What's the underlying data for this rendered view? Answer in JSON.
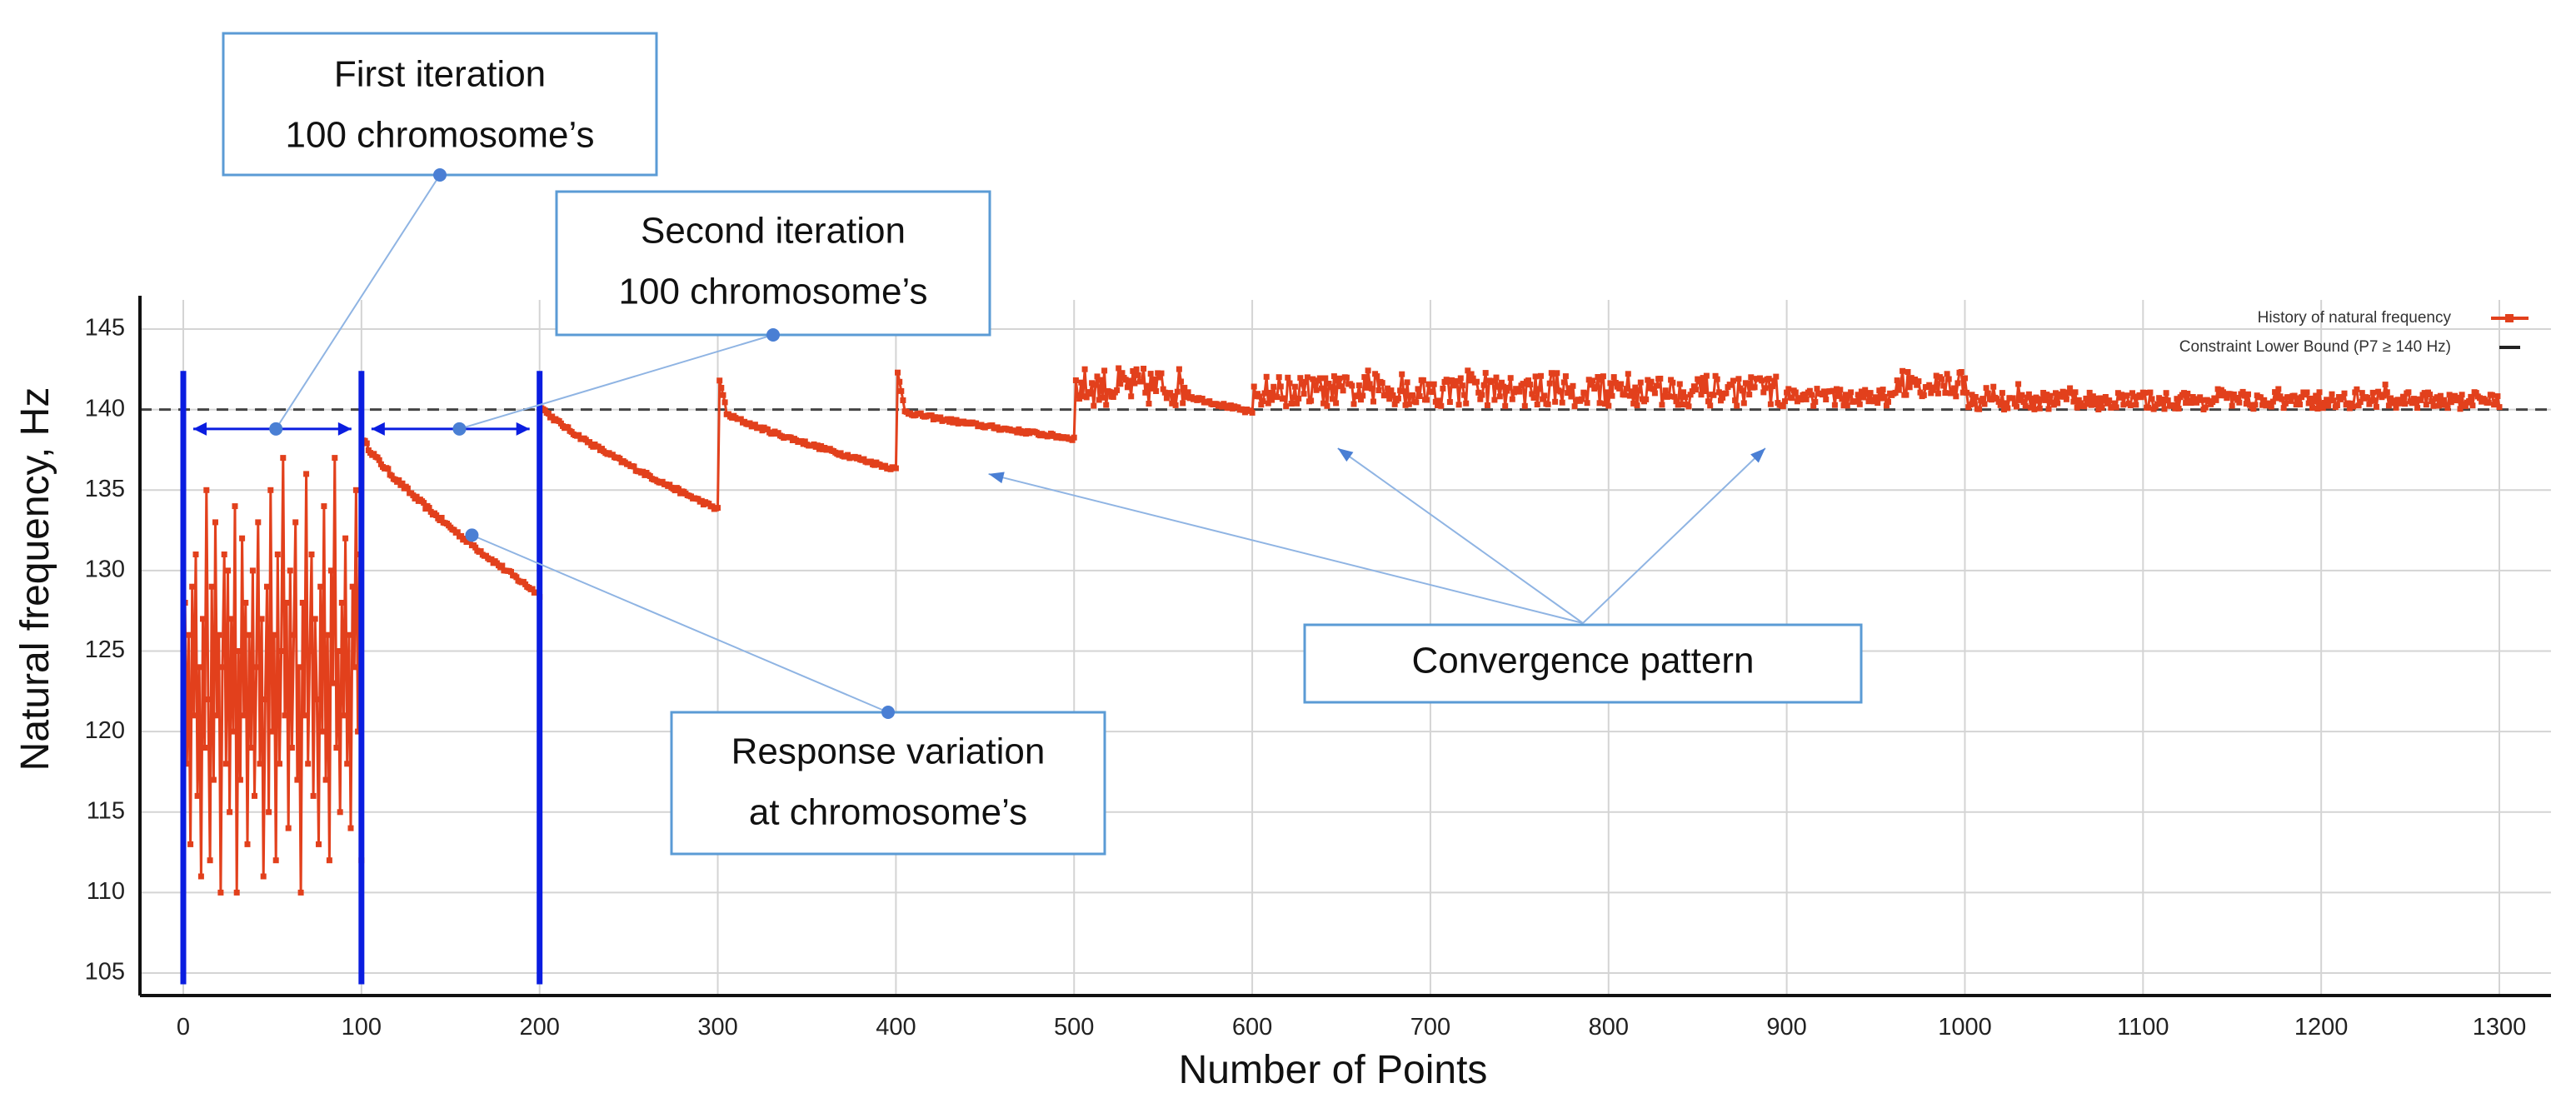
{
  "chart_data": {
    "type": "line",
    "title": "",
    "xlabel": "Number of Points",
    "ylabel": "Natural frequency, Hz",
    "xlim": [
      -10,
      1310
    ],
    "ylim": [
      104,
      146
    ],
    "x_ticks": [
      0,
      100,
      200,
      300,
      400,
      500,
      600,
      700,
      800,
      900,
      1000,
      1100,
      1200,
      1300
    ],
    "y_ticks": [
      105,
      110,
      115,
      120,
      125,
      130,
      135,
      140,
      145
    ],
    "grid": true,
    "legend_position": "top-right",
    "series": [
      {
        "name": "History of natural frequency",
        "color": "#e2401c",
        "marker": "square",
        "segments": [
          {
            "x_start": 0,
            "x_end": 100,
            "values": [
              107,
              128,
              118,
              126,
              113,
              129,
              121,
              131,
              116,
              124,
              111,
              127,
              119,
              135,
              122,
              112,
              129,
              117,
              133,
              121,
              126,
              110,
              124,
              131,
              118,
              130,
              115,
              127,
              120,
              134,
              110,
              125,
              117,
              132,
              121,
              128,
              113,
              126,
              119,
              130,
              116,
              124,
              133,
              118,
              127,
              111,
              122,
              129,
              115,
              135,
              120,
              126,
              112,
              131,
              118,
              125,
              137,
              121,
              128,
              114,
              130,
              119,
              126,
              133,
              117,
              124,
              110,
              128,
              121,
              136,
              118,
              125,
              131,
              116,
              127,
              122,
              113,
              129,
              120,
              134,
              117,
              126,
              112,
              130,
              123,
              137,
              119,
              125,
              115,
              128,
              121,
              132,
              118,
              126,
              114,
              129,
              124,
              135,
              120,
              131,
              112
            ]
          },
          {
            "x_start": 101,
            "x_end": 200,
            "decay_from": 138.2,
            "decay_to": 128.5,
            "noise": 0.15
          },
          {
            "x_start": 201,
            "x_end": 300,
            "decay_from": 140.2,
            "decay_to": 133.8,
            "noise": 0.12
          },
          {
            "x_start": 301,
            "x_end": 400,
            "spike": 141.8,
            "decay_from": 140.0,
            "decay_to": 136.3,
            "noise": 0.12
          },
          {
            "x_start": 401,
            "x_end": 500,
            "spike": 142.3,
            "decay_from": 140.0,
            "decay_to": 138.2,
            "noise": 0.12
          },
          {
            "x_start": 501,
            "x_end": 600,
            "upper_band": 142.6,
            "tail_from": 140.8,
            "tail_to": 139.8
          },
          {
            "x_start": 601,
            "x_end": 1000,
            "band_min": 140.0,
            "band_max": 143.0
          },
          {
            "x_start": 1001,
            "x_end": 1300,
            "band_min": 140.0,
            "band_max": 141.6
          }
        ]
      },
      {
        "name": "Constraint Lower Bound (P7 ≥ 140 Hz)",
        "color": "#444444",
        "style": "dashed",
        "y": 140
      }
    ],
    "iteration_dividers": [
      0,
      100,
      200
    ],
    "iteration_arrows": [
      {
        "x_from": 0,
        "x_to": 100,
        "y": 138.8
      },
      {
        "x_from": 100,
        "x_to": 200,
        "y": 138.8
      }
    ],
    "annotations": [
      {
        "name": "first-iteration",
        "lines": [
          "First iteration",
          "100 chromosome’s"
        ],
        "point": {
          "x": 52,
          "y": 138.8
        }
      },
      {
        "name": "second-iteration",
        "lines": [
          "Second iteration",
          "100 chromosome’s"
        ],
        "point": {
          "x": 155,
          "y": 138.8
        }
      },
      {
        "name": "response-variation",
        "lines": [
          "Response variation",
          "at chromosome’s"
        ],
        "point": {
          "x": 162,
          "y": 132.2
        }
      },
      {
        "name": "convergence-pattern",
        "lines": [
          "Convergence pattern"
        ],
        "arrow_targets": [
          {
            "x": 452,
            "y": 136
          },
          {
            "x": 648,
            "y": 137.6
          },
          {
            "x": 888,
            "y": 137.6
          }
        ]
      }
    ]
  }
}
